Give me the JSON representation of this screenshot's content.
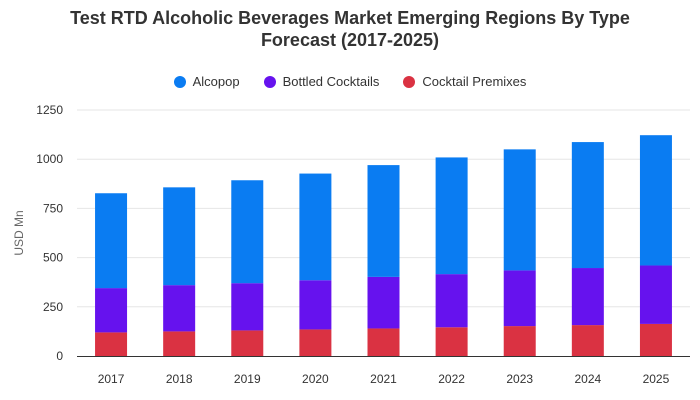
{
  "colors": {
    "alcopop": "#0a7cf2",
    "bottled_cocktails": "#6612ee",
    "cocktail_premixes": "#da3242",
    "grid": "#e6e6e6",
    "axis": "#333333"
  },
  "chart_data": {
    "type": "bar",
    "stacked": true,
    "title_line1": "Test RTD Alcoholic Beverages Market Emerging Regions By Type",
    "title_line2": "Forecast (2017-2025)",
    "xlabel": "",
    "ylabel": "USD Mn",
    "ylim": [
      0,
      1250
    ],
    "yticks": [
      "0",
      "250",
      "500",
      "750",
      "1000",
      "1250"
    ],
    "categories": [
      "2017",
      "2018",
      "2019",
      "2020",
      "2021",
      "2022",
      "2023",
      "2024",
      "2025"
    ],
    "legend_position": "top",
    "grid": true,
    "series": [
      {
        "name": "Cocktail Premixes",
        "color_key": "cocktail_premixes",
        "values": [
          120,
          125,
          130,
          135,
          140,
          146,
          152,
          157,
          163
        ]
      },
      {
        "name": "Bottled Cocktails",
        "color_key": "bottled_cocktails",
        "values": [
          225,
          235,
          240,
          250,
          262,
          270,
          283,
          290,
          297
        ]
      },
      {
        "name": "Alcopop",
        "color_key": "alcopop",
        "values": [
          482,
          497,
          523,
          542,
          568,
          593,
          615,
          640,
          662
        ]
      }
    ],
    "legend": [
      "Alcopop",
      "Bottled Cocktails",
      "Cocktail Premixes"
    ]
  }
}
